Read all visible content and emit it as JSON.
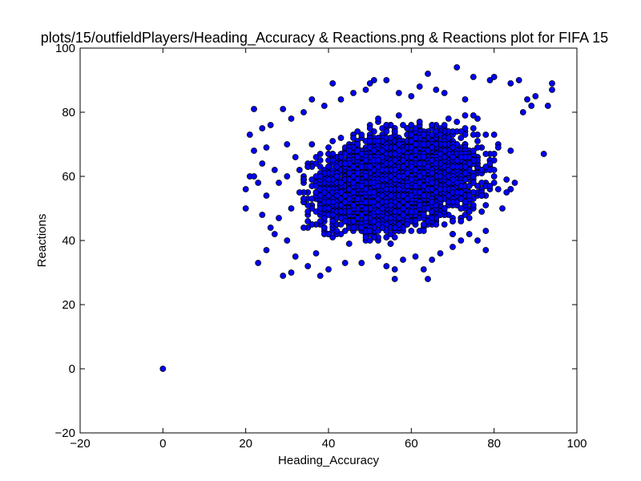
{
  "chart_data": {
    "type": "scatter",
    "title": "plots/15/outfieldPlayers/Heading_Accuracy & Reactions.png & Reactions plot for FIFA 15",
    "xlabel": "Heading_Accuracy",
    "ylabel": "Reactions",
    "xlim": [
      -20,
      100
    ],
    "ylim": [
      -20,
      100
    ],
    "xticks": [
      "−20",
      "0",
      "20",
      "40",
      "60",
      "80",
      "100"
    ],
    "yticks": [
      "−20",
      "0",
      "20",
      "40",
      "60",
      "80",
      "100"
    ],
    "grid": false,
    "marker_color": "#0000ff",
    "marker_edge": "#000000",
    "description_points": [
      [
        0,
        0
      ],
      [
        20,
        50
      ],
      [
        20,
        56
      ],
      [
        21,
        60
      ],
      [
        21,
        73
      ],
      [
        22,
        81
      ],
      [
        22,
        68
      ],
      [
        22,
        60
      ],
      [
        23,
        33
      ],
      [
        23,
        58
      ],
      [
        24,
        48
      ],
      [
        24,
        75
      ],
      [
        24,
        64
      ],
      [
        25,
        37
      ],
      [
        25,
        54
      ],
      [
        25,
        69
      ],
      [
        26,
        76
      ],
      [
        26,
        44
      ],
      [
        27,
        42
      ],
      [
        27,
        62
      ],
      [
        28,
        58
      ],
      [
        28,
        47
      ],
      [
        29,
        29
      ],
      [
        29,
        81
      ],
      [
        30,
        70
      ],
      [
        30,
        40
      ],
      [
        31,
        30
      ],
      [
        31,
        78
      ],
      [
        32,
        35
      ],
      [
        32,
        66
      ],
      [
        34,
        80
      ],
      [
        35,
        32
      ],
      [
        36,
        84
      ],
      [
        37,
        36
      ],
      [
        38,
        29
      ],
      [
        39,
        82
      ],
      [
        40,
        31
      ],
      [
        41,
        89
      ],
      [
        43,
        84
      ],
      [
        44,
        33
      ],
      [
        46,
        86
      ],
      [
        48,
        33
      ],
      [
        49,
        87
      ],
      [
        50,
        89
      ],
      [
        51,
        90
      ],
      [
        52,
        35
      ],
      [
        54,
        32
      ],
      [
        54,
        90
      ],
      [
        56,
        28
      ],
      [
        56,
        31
      ],
      [
        57,
        86
      ],
      [
        58,
        34
      ],
      [
        60,
        85
      ],
      [
        61,
        35
      ],
      [
        62,
        88
      ],
      [
        63,
        31
      ],
      [
        64,
        28
      ],
      [
        64,
        92
      ],
      [
        65,
        34
      ],
      [
        66,
        87
      ],
      [
        67,
        36
      ],
      [
        68,
        86
      ],
      [
        70,
        38
      ],
      [
        71,
        94
      ],
      [
        72,
        40
      ],
      [
        73,
        84
      ],
      [
        74,
        42
      ],
      [
        75,
        91
      ],
      [
        76,
        40
      ],
      [
        78,
        37
      ],
      [
        78,
        43
      ],
      [
        79,
        90
      ],
      [
        80,
        91
      ],
      [
        81,
        56
      ],
      [
        82,
        50
      ],
      [
        83,
        55
      ],
      [
        84,
        89
      ],
      [
        85,
        58
      ],
      [
        86,
        90
      ],
      [
        87,
        80
      ],
      [
        88,
        84
      ],
      [
        89,
        82
      ],
      [
        90,
        85
      ],
      [
        92,
        67
      ],
      [
        93,
        82
      ],
      [
        94,
        89
      ],
      [
        94,
        87
      ]
    ],
    "density_clusters": [
      {
        "x_range": [
          30,
          85
        ],
        "y_range": [
          38,
          82
        ],
        "approx_count": 6000
      }
    ]
  }
}
